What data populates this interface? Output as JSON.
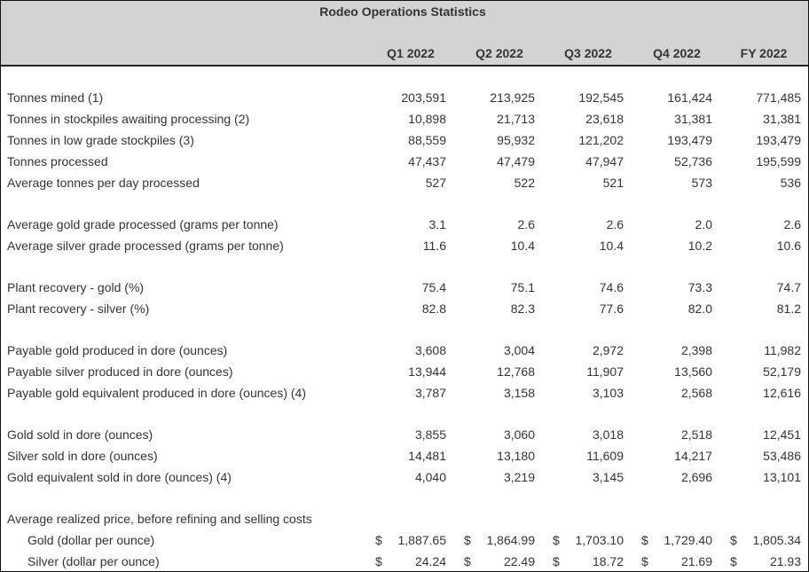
{
  "title": "Rodeo Operations Statistics",
  "columns": [
    "Q1 2022",
    "Q2 2022",
    "Q3 2022",
    "Q4 2022",
    "FY 2022"
  ],
  "rows": [
    {
      "type": "spacer"
    },
    {
      "label": "Tonnes mined (1)",
      "values": [
        "203,591",
        "213,925",
        "192,545",
        "161,424",
        "771,485"
      ]
    },
    {
      "label": "Tonnes in stockpiles awaiting processing (2)",
      "values": [
        "10,898",
        "21,713",
        "23,618",
        "31,381",
        "31,381"
      ]
    },
    {
      "label": "Tonnes in low grade stockpiles (3)",
      "values": [
        "88,559",
        "95,932",
        "121,202",
        "193,479",
        "193,479"
      ]
    },
    {
      "label": "Tonnes processed",
      "values": [
        "47,437",
        "47,479",
        "47,947",
        "52,736",
        "195,599"
      ]
    },
    {
      "label": "Average tonnes per day processed",
      "values": [
        "527",
        "522",
        "521",
        "573",
        "536"
      ]
    },
    {
      "type": "spacer"
    },
    {
      "label": "Average gold grade processed (grams per tonne)",
      "values": [
        "3.1",
        "2.6",
        "2.6",
        "2.0",
        "2.6"
      ]
    },
    {
      "label": "Average silver grade processed (grams per tonne)",
      "values": [
        "11.6",
        "10.4",
        "10.4",
        "10.2",
        "10.6"
      ]
    },
    {
      "type": "spacer"
    },
    {
      "label": "Plant recovery - gold (%)",
      "values": [
        "75.4",
        "75.1",
        "74.6",
        "73.3",
        "74.7"
      ]
    },
    {
      "label": "Plant recovery - silver (%)",
      "values": [
        "82.8",
        "82.3",
        "77.6",
        "82.0",
        "81.2"
      ]
    },
    {
      "type": "spacer"
    },
    {
      "label": "Payable gold produced in dore (ounces)",
      "values": [
        "3,608",
        "3,004",
        "2,972",
        "2,398",
        "11,982"
      ]
    },
    {
      "label": "Payable silver produced in dore (ounces)",
      "values": [
        "13,944",
        "12,768",
        "11,907",
        "13,560",
        "52,179"
      ]
    },
    {
      "label": "Payable gold equivalent produced in dore (ounces) (4)",
      "values": [
        "3,787",
        "3,158",
        "3,103",
        "2,568",
        "12,616"
      ]
    },
    {
      "type": "spacer"
    },
    {
      "label": "Gold sold in dore (ounces)",
      "values": [
        "3,855",
        "3,060",
        "3,018",
        "2,518",
        "12,451"
      ]
    },
    {
      "label": "Silver sold in dore (ounces)",
      "values": [
        "14,481",
        "13,180",
        "11,609",
        "14,217",
        "53,486"
      ]
    },
    {
      "label": "Gold equivalent sold in dore (ounces) (4)",
      "values": [
        "4,040",
        "3,219",
        "3,145",
        "2,696",
        "13,101"
      ]
    },
    {
      "type": "spacer"
    },
    {
      "label": "Average realized price, before refining and selling costs",
      "values": [
        "",
        "",
        "",
        "",
        ""
      ]
    },
    {
      "label": "Gold (dollar per ounce)",
      "indent": true,
      "currency": "$",
      "values": [
        "1,887.65",
        "1,864.99",
        "1,703.10",
        "1,729.40",
        "1,805.34"
      ]
    },
    {
      "label": "Silver (dollar per ounce)",
      "indent": true,
      "currency": "$",
      "values": [
        "24.24",
        "22.49",
        "18.72",
        "21.69",
        "21.93"
      ]
    }
  ]
}
